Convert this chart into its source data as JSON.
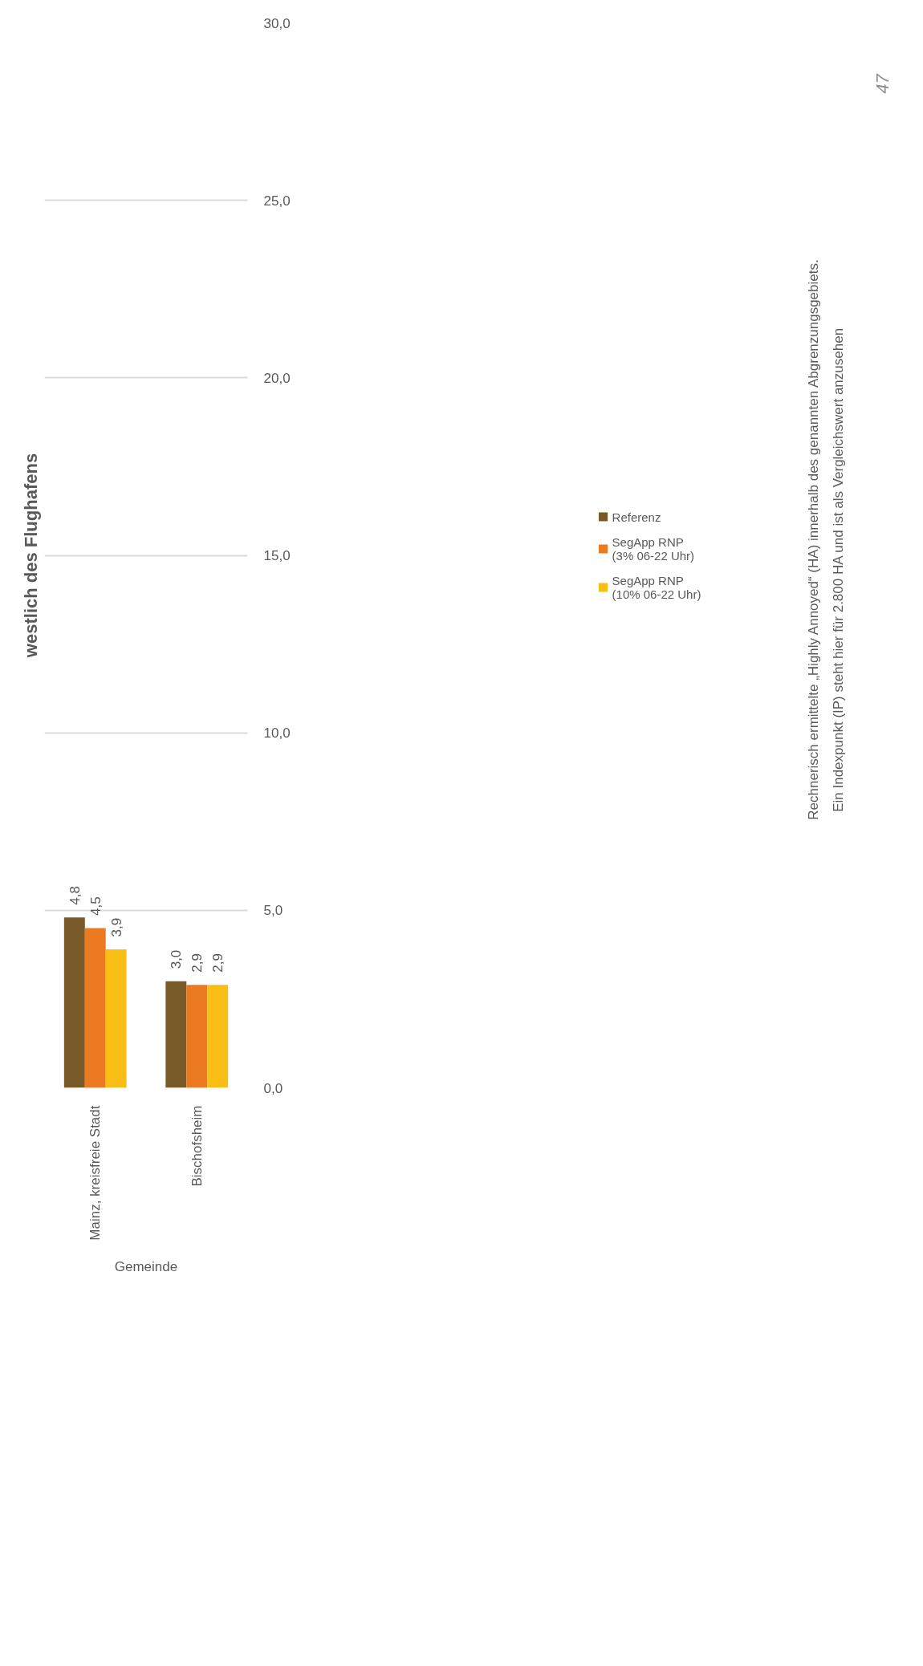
{
  "chart_data": {
    "type": "bar",
    "title": "westlich des Flughafens",
    "xlabel": "Gemeinde",
    "categories": [
      "Mainz, kreisfreie Stadt",
      "Bischofsheim"
    ],
    "series": [
      {
        "name": "Referenz",
        "color": "#775a27",
        "values": [
          4.8,
          3.0
        ],
        "value_labels": [
          "4,8",
          "3,0"
        ]
      },
      {
        "name": "SegApp RNP\n(3% 06-22 Uhr)",
        "color": "#ec7a23",
        "values": [
          4.5,
          2.9
        ],
        "value_labels": [
          "4,5",
          "2,9"
        ]
      },
      {
        "name": "SegApp RNP\n(10% 06-22 Uhr)",
        "color": "#f9be16",
        "values": [
          3.9,
          2.9
        ],
        "value_labels": [
          "3,9",
          "2,9"
        ]
      }
    ],
    "ylim": [
      0,
      30
    ],
    "yticks": [
      {
        "value": 0,
        "label": "0,0"
      },
      {
        "value": 5,
        "label": "5,0"
      },
      {
        "value": 10,
        "label": "10,0"
      },
      {
        "value": 15,
        "label": "15,0"
      },
      {
        "value": 20,
        "label": "20,0"
      },
      {
        "value": 25,
        "label": "25,0"
      },
      {
        "value": 30,
        "label": "30,0"
      }
    ],
    "grid": "y",
    "legend": "right",
    "annotations": [
      "Rechnerisch ermittelte „Highly Annoyed“ (HA) innerhalb des genannten Abgrenzungsgebiets.\nEin Indexpunkt (IP) steht hier für 2.800 HA und ist als Vergleichswert anzusehen",
      "47"
    ]
  }
}
